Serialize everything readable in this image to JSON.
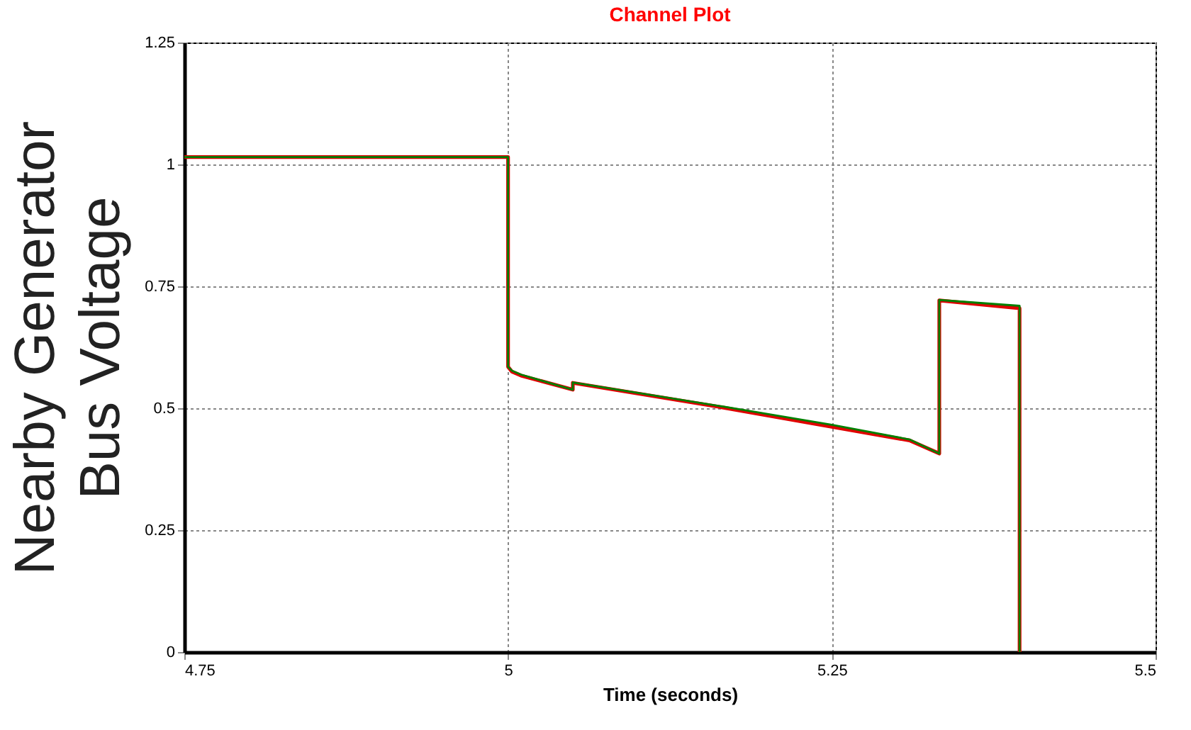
{
  "chart_data": {
    "type": "line",
    "title": "Channel Plot",
    "xlabel": "Time (seconds)",
    "ylabel": "Nearby Generator Bus Voltage",
    "xlim": [
      4.75,
      5.5
    ],
    "xticks": [
      4.75,
      5,
      5.25,
      5.5
    ],
    "ylim": [
      0,
      1.25
    ],
    "yticks": [
      0,
      0.25,
      0.5,
      0.75,
      1,
      1.25
    ],
    "grid": true,
    "series": [
      {
        "color": "#e00000",
        "x": [
          4.75,
          5.0,
          5.0,
          5.003,
          5.01,
          5.05,
          5.05,
          5.167,
          5.25,
          5.31,
          5.333,
          5.333,
          5.395,
          5.395
        ],
        "values": [
          1.015,
          1.015,
          0.585,
          0.575,
          0.567,
          0.538,
          0.552,
          0.501,
          0.462,
          0.434,
          0.407,
          0.721,
          0.705,
          0
        ]
      },
      {
        "color": "#008000",
        "x": [
          4.75,
          5.0,
          5.0,
          5.003,
          5.01,
          5.05,
          5.05,
          5.167,
          5.25,
          5.31,
          5.333,
          5.333,
          5.395,
          5.395
        ],
        "values": [
          1.015,
          1.015,
          0.585,
          0.577,
          0.569,
          0.538,
          0.553,
          0.503,
          0.466,
          0.436,
          0.407,
          0.722,
          0.71,
          0
        ]
      }
    ]
  }
}
